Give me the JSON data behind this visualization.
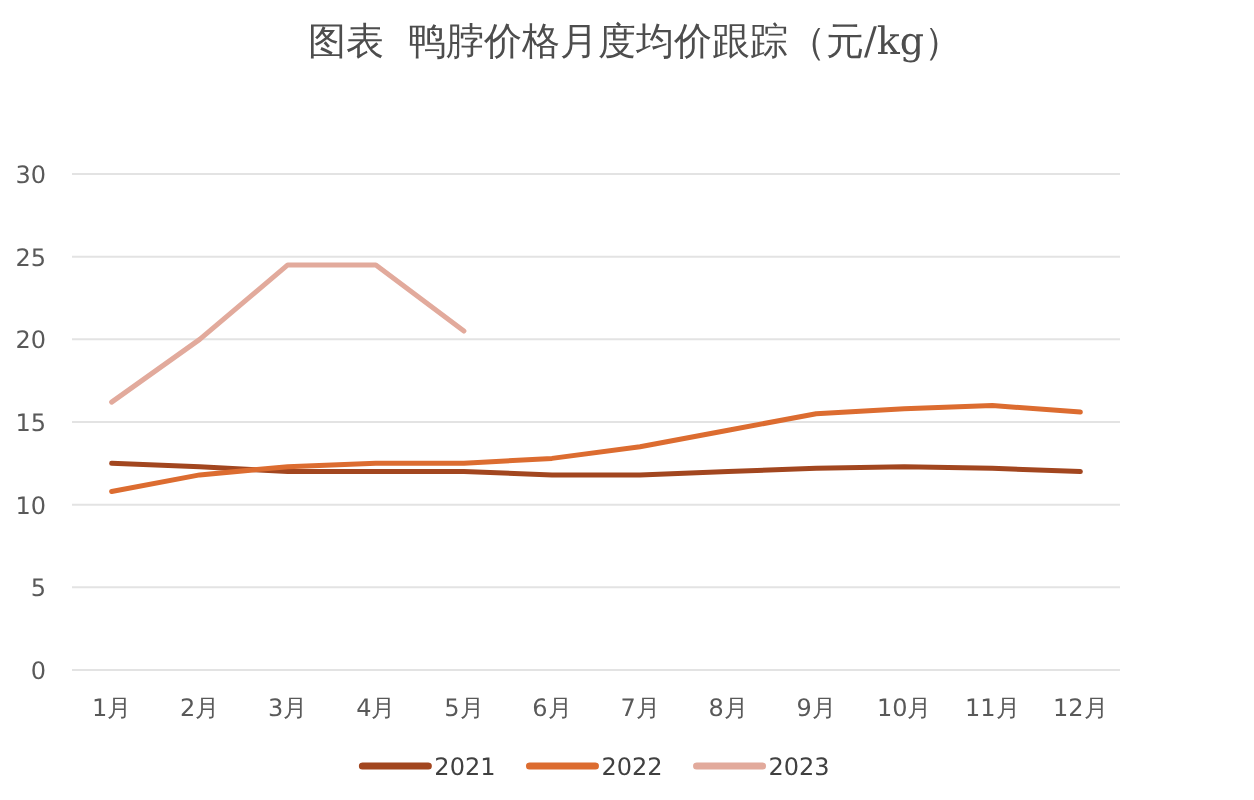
{
  "chart_data": {
    "type": "line",
    "title": "图表  鸭脖价格月度均价跟踪（元/kg）",
    "categories": [
      "1月",
      "2月",
      "3月",
      "4月",
      "5月",
      "6月",
      "7月",
      "8月",
      "9月",
      "10月",
      "11月",
      "12月"
    ],
    "series": [
      {
        "name": "2021",
        "color": "#a2461f",
        "values": [
          12.5,
          12.3,
          12.0,
          12.0,
          12.0,
          11.8,
          11.8,
          12.0,
          12.2,
          12.3,
          12.2,
          12.0
        ]
      },
      {
        "name": "2022",
        "color": "#dc6c30",
        "values": [
          10.8,
          11.8,
          12.3,
          12.5,
          12.5,
          12.8,
          13.5,
          14.5,
          15.5,
          15.8,
          16.0,
          15.6
        ]
      },
      {
        "name": "2023",
        "color": "#e2aa9c",
        "values": [
          16.2,
          20.0,
          24.5,
          24.5,
          20.5,
          null,
          null,
          null,
          null,
          null,
          null,
          null
        ]
      }
    ],
    "ylim": [
      0,
      30
    ],
    "yticks": [
      0,
      5,
      10,
      15,
      20,
      25,
      30
    ],
    "grid": "y",
    "legend": "bottom"
  }
}
